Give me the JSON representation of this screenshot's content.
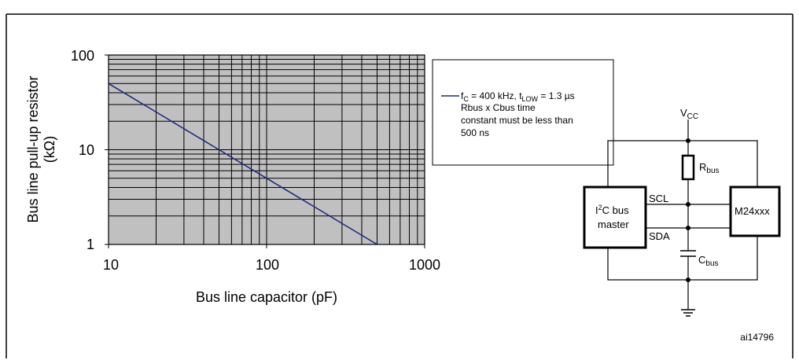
{
  "chart_data": {
    "type": "line",
    "x_scale": "log",
    "y_scale": "log",
    "xlim": [
      10,
      1000
    ],
    "ylim": [
      1,
      100
    ],
    "x_ticks": [
      "10",
      "100",
      "1000"
    ],
    "y_ticks": [
      "1",
      "10",
      "100"
    ],
    "xlabel": "Bus line capacitor (pF)",
    "ylabel_line1": "Bus line pull-up resistor",
    "ylabel_line2": "(kΩ)",
    "grid": true,
    "background": "#c0c0c0",
    "series": [
      {
        "name_main": "f",
        "name_sub1": "C",
        "name_mid": " = 400 kHz, t",
        "name_sub2": "LOW",
        "name_end": " = 1.3 µs",
        "color": "#1f2a7a",
        "x": [
          10,
          20,
          50,
          100,
          200,
          500
        ],
        "y": [
          50,
          25,
          10,
          5,
          2.5,
          1
        ]
      }
    ],
    "legend_note": [
      "Rbus x Cbus time",
      "constant must be less than",
      "500 ns"
    ],
    "legend_position": "right"
  },
  "schematic": {
    "vcc_main": "V",
    "vcc_sub": "CC",
    "rbus_main": "R",
    "rbus_sub": "bus",
    "cbus_main": "C",
    "cbus_sub": "bus",
    "master_line1_pre": "I",
    "master_line1_sup": "2",
    "master_line1_post": "C bus",
    "master_line2": "master",
    "scl": "SCL",
    "sda": "SDA",
    "device": "M24xxx"
  },
  "figure_id": "ai14796"
}
